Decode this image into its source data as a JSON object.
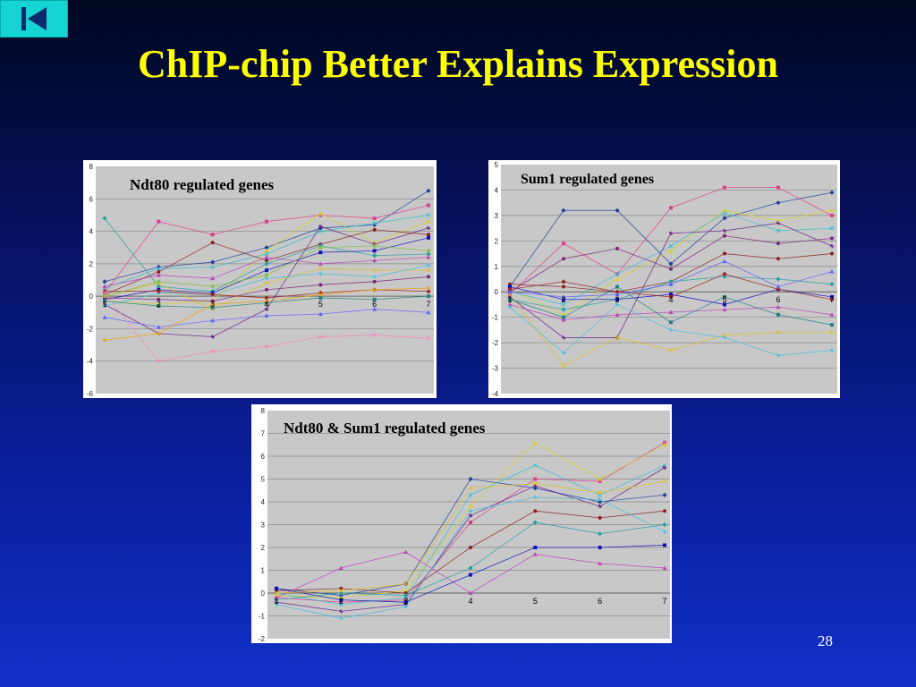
{
  "slide": {
    "title": "ChIP-chip Better Explains Expression",
    "page_number": "28",
    "nav_icon": "first-slide-icon",
    "title_color": "#ffff00",
    "accent_color": "#14d4d4"
  },
  "chart_data": [
    {
      "type": "line",
      "title": "Ndt80 regulated genes",
      "categories": [
        "1",
        "2",
        "3",
        "4",
        "5",
        "6",
        "7"
      ],
      "ylim": [
        -6,
        8
      ],
      "yticks": [
        -6,
        -4,
        -2,
        0,
        2,
        4,
        6,
        8
      ],
      "grid": true,
      "series": [
        {
          "values": [
            0.9,
            1.8,
            2.1,
            3.0,
            4.2,
            4.4,
            6.5
          ]
        },
        {
          "values": [
            0.2,
            4.6,
            3.8,
            4.6,
            5.0,
            4.8,
            5.6
          ]
        },
        {
          "values": [
            -0.3,
            -0.5,
            -0.3,
            2.8,
            5.1,
            3.3,
            4.6
          ]
        },
        {
          "values": [
            0.5,
            1.7,
            1.8,
            2.6,
            4.0,
            4.5,
            5.0
          ]
        },
        {
          "values": [
            -0.5,
            -2.3,
            -2.5,
            -0.8,
            4.3,
            3.2,
            4.2
          ]
        },
        {
          "values": [
            0.1,
            1.5,
            3.3,
            2.2,
            3.2,
            4.1,
            3.8
          ]
        },
        {
          "values": [
            4.8,
            0.6,
            0.3,
            2.0,
            3.1,
            2.5,
            2.6
          ]
        },
        {
          "values": [
            -0.2,
            0.4,
            0.2,
            1.6,
            2.7,
            2.8,
            3.6
          ]
        },
        {
          "values": [
            0.6,
            1.3,
            1.1,
            2.4,
            2.0,
            2.2,
            2.4
          ]
        },
        {
          "values": [
            0.0,
            0.8,
            -0.8,
            0.8,
            1.7,
            1.6,
            1.6
          ]
        },
        {
          "values": [
            -0.6,
            0.2,
            0.1,
            1.1,
            1.4,
            1.2,
            1.9
          ]
        },
        {
          "values": [
            -0.1,
            -0.2,
            -0.3,
            0.4,
            0.7,
            0.9,
            1.2
          ]
        },
        {
          "values": [
            0.3,
            0.3,
            0.1,
            -0.1,
            0.2,
            0.4,
            0.3
          ]
        },
        {
          "values": [
            -0.3,
            -0.6,
            -0.7,
            -0.4,
            -0.1,
            -0.2,
            0.0
          ]
        },
        {
          "values": [
            -1.3,
            -1.9,
            -1.5,
            -1.2,
            -1.1,
            -0.8,
            -1.0
          ]
        },
        {
          "values": [
            0.2,
            -4.0,
            -3.4,
            -3.1,
            -2.5,
            -2.4,
            -2.6
          ]
        },
        {
          "values": [
            -2.7,
            -2.3,
            -0.5,
            -0.3,
            0.1,
            0.4,
            0.5
          ]
        },
        {
          "values": [
            0.0,
            0.9,
            0.6,
            1.3,
            3.0,
            3.1,
            2.8
          ]
        }
      ]
    },
    {
      "type": "line",
      "title": "Sum1 regulated genes",
      "categories": [
        "1",
        "2",
        "3",
        "4",
        "5",
        "6",
        "7"
      ],
      "ylim": [
        -4,
        5
      ],
      "yticks": [
        -4,
        -3,
        -2,
        -1,
        0,
        1,
        2,
        3,
        4,
        5
      ],
      "grid": true,
      "series": [
        {
          "values": [
            0.2,
            3.2,
            3.2,
            1.1,
            2.9,
            3.5,
            3.9
          ]
        },
        {
          "values": [
            -0.1,
            1.9,
            0.7,
            3.3,
            4.1,
            4.1,
            3.0
          ]
        },
        {
          "values": [
            0.1,
            -0.9,
            0.5,
            1.6,
            3.2,
            2.8,
            3.2
          ]
        },
        {
          "values": [
            0.0,
            -0.5,
            0.7,
            1.8,
            3.1,
            2.4,
            2.5
          ]
        },
        {
          "values": [
            -0.2,
            -1.8,
            -1.8,
            2.3,
            2.4,
            2.7,
            1.8
          ]
        },
        {
          "values": [
            0.3,
            0.2,
            0.0,
            0.4,
            1.5,
            1.3,
            1.5
          ]
        },
        {
          "values": [
            -0.3,
            -0.7,
            -0.3,
            0.4,
            0.6,
            0.5,
            0.3
          ]
        },
        {
          "values": [
            0.2,
            -0.3,
            -0.3,
            -0.1,
            -0.5,
            0.1,
            -0.2
          ]
        },
        {
          "values": [
            -0.5,
            -1.1,
            -0.9,
            -0.8,
            -0.7,
            -0.6,
            -0.9
          ]
        },
        {
          "values": [
            -0.1,
            -2.9,
            -1.8,
            -2.3,
            -1.7,
            -1.6,
            -1.6
          ]
        },
        {
          "values": [
            -0.6,
            -2.4,
            -0.5,
            -1.5,
            -1.8,
            -2.5,
            -2.3
          ]
        },
        {
          "values": [
            0.0,
            1.3,
            1.7,
            0.9,
            2.2,
            1.9,
            2.1
          ]
        },
        {
          "values": [
            0.1,
            0.4,
            0.0,
            -0.2,
            0.7,
            0.1,
            -0.3
          ]
        },
        {
          "values": [
            -0.3,
            -1.0,
            0.2,
            -1.2,
            -0.2,
            -0.9,
            -1.3
          ]
        },
        {
          "values": [
            0.0,
            -0.2,
            -0.1,
            0.3,
            1.2,
            0.2,
            0.8
          ]
        }
      ]
    },
    {
      "type": "line",
      "title": "Ndt80 & Sum1 regulated genes",
      "categories": [
        "1",
        "2",
        "3",
        "4",
        "5",
        "6",
        "7"
      ],
      "ylim": [
        -2,
        8
      ],
      "yticks": [
        -2,
        -1,
        0,
        1,
        2,
        3,
        4,
        5,
        6,
        7,
        8
      ],
      "grid": true,
      "series": [
        {
          "values": [
            0.2,
            -0.1,
            0.4,
            5.0,
            4.6,
            4.0,
            4.3
          ]
        },
        {
          "values": [
            -0.2,
            -0.4,
            -0.3,
            3.1,
            5.0,
            4.9,
            6.6
          ]
        },
        {
          "values": [
            -0.1,
            -0.2,
            0.1,
            3.8,
            6.6,
            5.0,
            6.5
          ]
        },
        {
          "values": [
            0.0,
            -0.5,
            -0.2,
            4.3,
            5.6,
            4.3,
            5.6
          ]
        },
        {
          "values": [
            -0.4,
            -0.8,
            -0.5,
            3.4,
            4.7,
            3.8,
            5.5
          ]
        },
        {
          "values": [
            0.1,
            0.2,
            0.0,
            2.0,
            3.6,
            3.3,
            3.6
          ]
        },
        {
          "values": [
            -0.3,
            0.0,
            -0.1,
            1.1,
            3.1,
            2.6,
            3.0
          ]
        },
        {
          "values": [
            0.2,
            -0.3,
            -0.4,
            0.8,
            2.0,
            2.0,
            2.1
          ]
        },
        {
          "values": [
            -0.2,
            1.1,
            1.8,
            0.0,
            1.7,
            1.3,
            1.1
          ]
        },
        {
          "values": [
            0.0,
            0.1,
            0.4,
            4.6,
            4.8,
            4.4,
            4.9
          ]
        },
        {
          "values": [
            -0.5,
            -1.1,
            -0.6,
            3.6,
            4.2,
            4.1,
            2.7
          ]
        }
      ]
    }
  ]
}
